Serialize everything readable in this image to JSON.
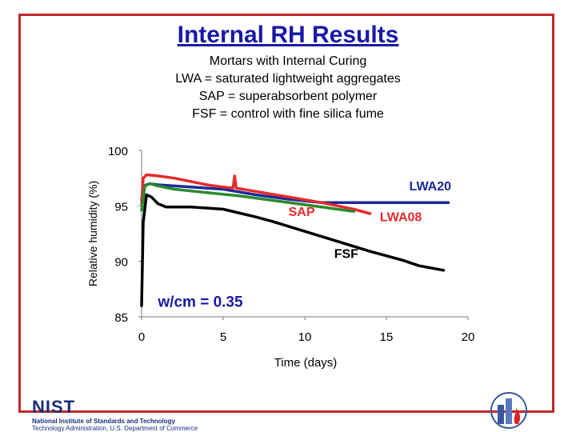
{
  "slide": {
    "title": "Internal RH Results",
    "subtitle_lines": [
      "Mortars with Internal Curing",
      "LWA = saturated lightweight aggregates",
      "SAP = superabsorbent polymer",
      "FSF = control with fine silica fume"
    ],
    "colors": {
      "frame": "#c0282d",
      "title": "#1a1aa6"
    }
  },
  "footer": {
    "logo_word": "NIST",
    "org_line": "National Institute of Standards and Technology",
    "dept_line": "Technology Administration, U.S. Department of Commerce",
    "right_logo": "building-fire-logo-icon"
  },
  "chart_data": {
    "type": "line",
    "title": "",
    "xlabel": "Time (days)",
    "ylabel": "Relative humidity (%)",
    "xlim": [
      0,
      20
    ],
    "ylim": [
      85,
      100
    ],
    "xticks": [
      "0",
      "5",
      "10",
      "15",
      "20"
    ],
    "yticks": [
      "85",
      "90",
      "95",
      "100"
    ],
    "grid": false,
    "legend": "labels on chart",
    "annotation": "w/cm = 0.35",
    "series": [
      {
        "name": "LWA20",
        "color": "#1a2a9a",
        "x": [
          0,
          0.1,
          0.5,
          1,
          2,
          3,
          5,
          7,
          9,
          11,
          13,
          15,
          17,
          18.8
        ],
        "y": [
          95.5,
          96.8,
          97.0,
          96.9,
          96.8,
          96.7,
          96.5,
          96.0,
          95.6,
          95.3,
          95.3,
          95.3,
          95.3,
          95.3
        ]
      },
      {
        "name": "LWA08",
        "color": "#e52b2b",
        "x": [
          0,
          0.1,
          0.3,
          1,
          2,
          3,
          4,
          5,
          5.6,
          5.7,
          5.8,
          7,
          9,
          11,
          12,
          13,
          14
        ],
        "y": [
          95.2,
          97.5,
          97.8,
          97.7,
          97.5,
          97.2,
          96.9,
          96.7,
          96.6,
          97.7,
          96.6,
          96.3,
          95.8,
          95.3,
          95.0,
          94.7,
          94.3
        ]
      },
      {
        "name": "SAP",
        "color": "#2b8a2b",
        "x": [
          0,
          0.2,
          0.5,
          1,
          2,
          4,
          6,
          8,
          10,
          12,
          13
        ],
        "y": [
          94.6,
          96.8,
          97.0,
          96.8,
          96.5,
          96.2,
          95.9,
          95.5,
          95.1,
          94.7,
          94.5
        ]
      },
      {
        "name": "FSF",
        "color": "#000000",
        "x": [
          0,
          0.1,
          0.3,
          0.6,
          1,
          1.5,
          3,
          5,
          7,
          8,
          10,
          12,
          14,
          16,
          17,
          18.5
        ],
        "y": [
          86,
          93.5,
          96.0,
          95.8,
          95.2,
          94.9,
          94.9,
          94.7,
          94.0,
          93.6,
          92.7,
          91.8,
          90.9,
          90.1,
          89.6,
          89.2
        ]
      }
    ],
    "series_labels": [
      {
        "text": "LWA20",
        "color": "#1a2a9a",
        "x": 16.4,
        "y": 96.4
      },
      {
        "text": "LWA08",
        "color": "#e52b2b",
        "x": 14.6,
        "y": 93.6
      },
      {
        "text": "SAP",
        "color": "#e52b2b",
        "x": 9.0,
        "y": 94.1
      },
      {
        "text": "FSF",
        "color": "#000000",
        "x": 11.8,
        "y": 90.3
      }
    ]
  }
}
